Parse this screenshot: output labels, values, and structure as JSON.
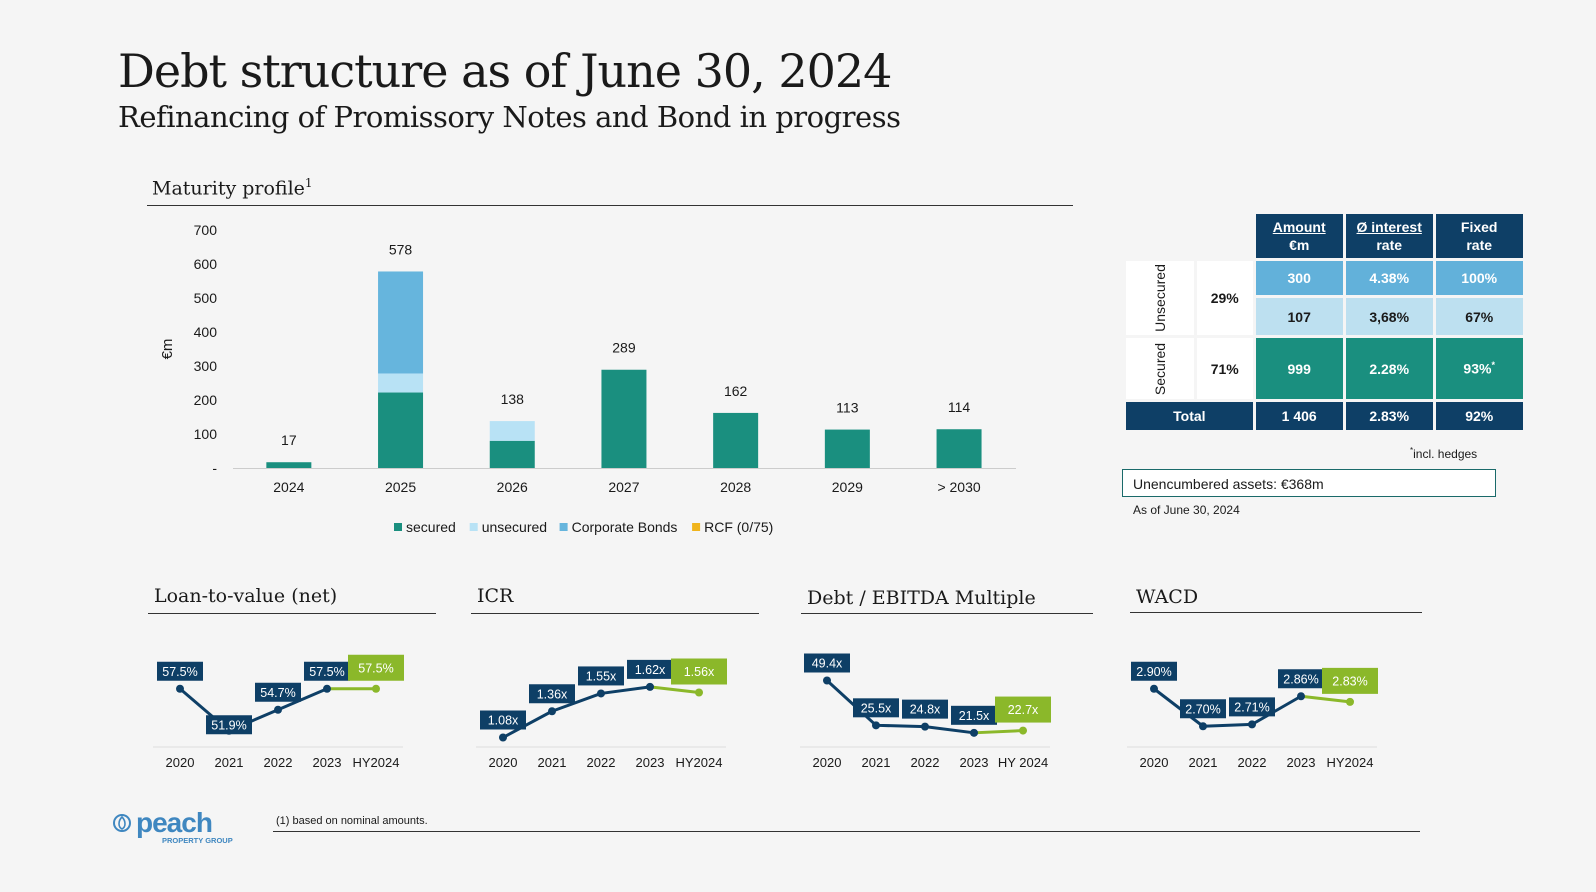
{
  "header": {
    "title": "Debt structure as of June 30, 2024",
    "subtitle": "Refinancing of Promissory Notes and Bond in progress"
  },
  "maturity": {
    "section_title": "Maturity profile",
    "footnote_marker": "1"
  },
  "colors": {
    "secured": "#1a8f7f",
    "unsecured": "#b8e2f5",
    "corporate_bonds": "#66b5dd",
    "rcf": "#f0b41c",
    "navy": "#0e3f66",
    "green": "#8bb82a"
  },
  "chart_data": [
    {
      "type": "bar",
      "ylabel": "€m",
      "ylim": [
        0,
        700
      ],
      "yticks": [
        "700",
        "600",
        "500",
        "400",
        "300",
        "200",
        "100",
        "-"
      ],
      "categories": [
        "2024",
        "2025",
        "2026",
        "2027",
        "2028",
        "2029",
        "> 2030"
      ],
      "series": [
        {
          "name": "secured",
          "values": [
            17,
            222,
            80,
            289,
            162,
            113,
            114
          ]
        },
        {
          "name": "unsecured",
          "values": [
            0,
            56,
            58,
            0,
            0,
            0,
            0
          ]
        },
        {
          "name": "Corporate Bonds",
          "values": [
            0,
            300,
            0,
            0,
            0,
            0,
            0
          ]
        },
        {
          "name": "RCF (0/75)",
          "values": [
            0,
            0,
            0,
            0,
            0,
            0,
            0
          ]
        }
      ],
      "totals": [
        "17",
        "578",
        "138",
        "289",
        "162",
        "113",
        "114"
      ],
      "legend": [
        "secured",
        "unsecured",
        "Corporate Bonds",
        "RCF (0/75)"
      ],
      "legend_position": "bottom"
    },
    {
      "type": "line",
      "title": "Loan-to-value (net)",
      "x": [
        "2020",
        "2021",
        "2022",
        "2023",
        "HY2024"
      ],
      "values": [
        57.5,
        51.9,
        54.7,
        57.5,
        57.5
      ],
      "labels": [
        "57.5%",
        "51.9%",
        "54.7%",
        "57.5%",
        "57.5%"
      ],
      "ylim": [
        50,
        60
      ]
    },
    {
      "type": "line",
      "title": "ICR",
      "x": [
        "2020",
        "2021",
        "2022",
        "2023",
        "HY2024"
      ],
      "values": [
        1.08,
        1.36,
        1.55,
        1.62,
        1.56
      ],
      "labels": [
        "1.08x",
        "1.36x",
        "1.55x",
        "1.62x",
        "1.56x"
      ],
      "ylim": [
        1.0,
        1.8
      ]
    },
    {
      "type": "line",
      "title": "Debt / EBITDA Multiple",
      "x": [
        "2020",
        "2021",
        "2022",
        "2023",
        "HY 2024"
      ],
      "values": [
        49.4,
        25.5,
        24.8,
        21.5,
        22.7
      ],
      "labels": [
        "49.4x",
        "25.5x",
        "24.8x",
        "21.5x",
        "22.7x"
      ],
      "ylim": [
        15,
        55
      ]
    },
    {
      "type": "line",
      "title": "WACD",
      "x": [
        "2020",
        "2021",
        "2022",
        "2023",
        "HY2024"
      ],
      "values": [
        2.9,
        2.7,
        2.71,
        2.86,
        2.83
      ],
      "labels": [
        "2.90%",
        "2.70%",
        "2.71%",
        "2.86%",
        "2.83%"
      ],
      "ylim": [
        2.6,
        3.0
      ]
    }
  ],
  "debt_table": {
    "headers": [
      [
        "Amount",
        "€m"
      ],
      [
        "Ø interest",
        "rate"
      ],
      [
        "Fixed",
        "rate"
      ]
    ],
    "unsecured_label": "Unsecured",
    "unsecured_pct": "29%",
    "secured_label": "Secured",
    "secured_pct": "71%",
    "row_bonds": [
      "300",
      "4.38%",
      "100%"
    ],
    "row_unsecured": [
      "107",
      "3,68%",
      "67%"
    ],
    "row_secured": [
      "999",
      "2.28%",
      "93%"
    ],
    "secured_fixed_marker": "*",
    "total_label": "Total",
    "row_total": [
      "1 406",
      "2.83%",
      "92%"
    ],
    "hedge_marker": "*",
    "hedge_note": "incl. hedges",
    "unencumbered": "Unencumbered assets: €368m",
    "as_of": "As of June 30, 2024"
  },
  "footer": {
    "footnote": "(1) based on nominal amounts.",
    "logo_name": "peach",
    "logo_sub": "PROPERTY GROUP"
  }
}
